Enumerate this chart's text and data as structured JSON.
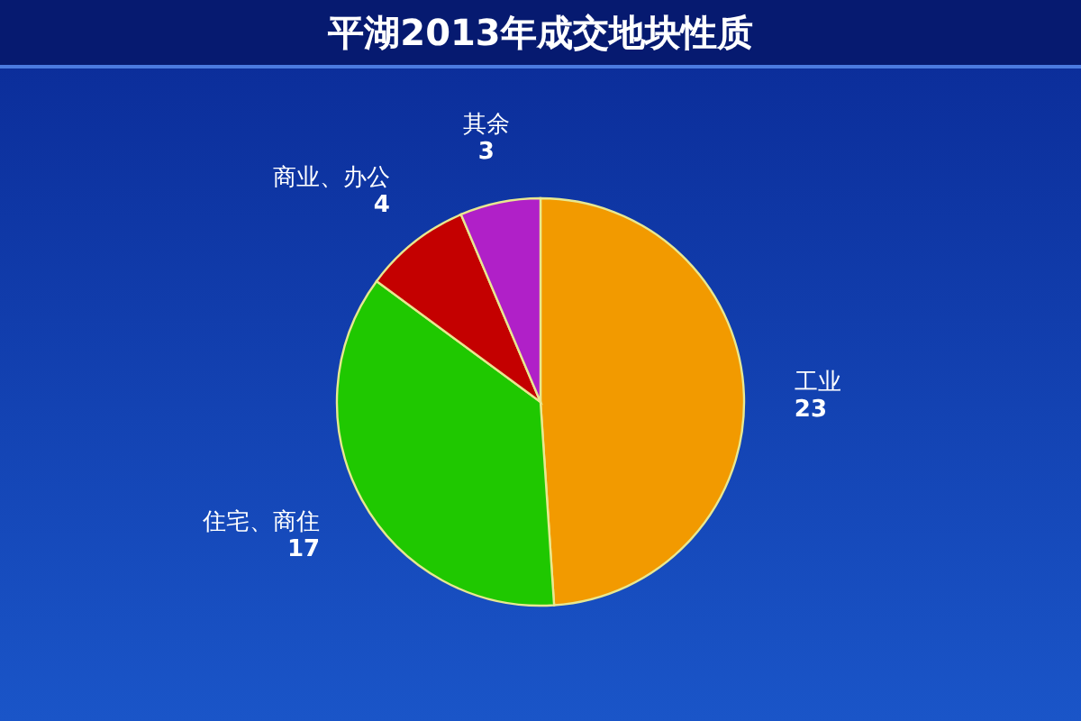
{
  "chart_data": {
    "type": "pie",
    "title": "平湖2013年成交地块性质",
    "categories": [
      "工业",
      "住宅、商住",
      "商业、办公",
      "其余"
    ],
    "values": [
      23,
      17,
      4,
      3
    ],
    "colors": [
      "#f29a00",
      "#1fc800",
      "#c40000",
      "#b020c8"
    ],
    "data_labels": true
  }
}
